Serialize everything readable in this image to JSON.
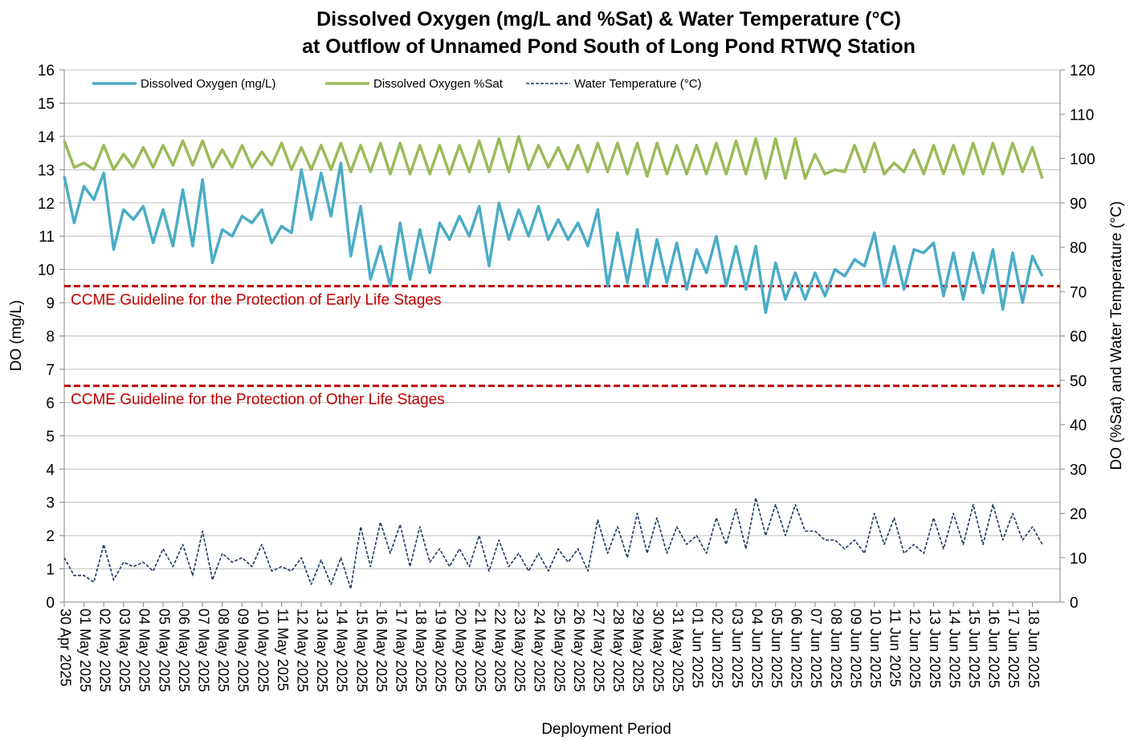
{
  "chart_data": {
    "type": "line",
    "title": "Dissolved Oxygen (mg/L and %Sat) & Water Temperature (°C)",
    "subtitle": "at Outflow of Unnamed Pond South of Long Pond RTWQ Station",
    "x_label": "Deployment Period",
    "y_label": "DO (mg/L)",
    "y2_label": "DO (%Sat) and Water Temperature (°C)",
    "legend": "upper left",
    "ylim": [
      0,
      16
    ],
    "yticks": [
      0,
      1,
      2,
      3,
      4,
      5,
      6,
      7,
      8,
      9,
      10,
      11,
      12,
      13,
      14,
      15,
      16
    ],
    "y2lim": [
      0,
      120
    ],
    "y2ticks": [
      0,
      10,
      20,
      30,
      40,
      50,
      60,
      70,
      80,
      90,
      100,
      110,
      120
    ],
    "grid": true,
    "reference_lines": [
      {
        "value": 9.5,
        "label": "CCME Guideline for the Protection of Early Life Stages",
        "color": "#c00000"
      },
      {
        "value": 6.5,
        "label": "CCME Guideline for the Protection of Other Life Stages",
        "color": "#c00000"
      }
    ],
    "categories": [
      "30 Apr 2025",
      null,
      "01 May 2025",
      null,
      "02 May 2025",
      null,
      "03 May 2025",
      null,
      "04 May 2025",
      null,
      "05 May 2025",
      null,
      "06 May 2025",
      null,
      "07 May 2025",
      null,
      "08 May 2025",
      null,
      "09 May 2025",
      null,
      "10 May 2025",
      null,
      "11 May 2025",
      null,
      "12 May 2025",
      null,
      "13 May 2025",
      null,
      "14 May 2025",
      null,
      "15 May 2025",
      null,
      "16 May 2025",
      null,
      "17 May 2025",
      null,
      "18 May 2025",
      null,
      "19 May 2025",
      null,
      "20 May 2025",
      null,
      "21 May 2025",
      null,
      "22 May 2025",
      null,
      "23 May 2025",
      null,
      "24 May 2025",
      null,
      "25 May 2025",
      null,
      "26 May 2025",
      null,
      "27 May 2025",
      null,
      "28 May 2025",
      null,
      "29 May 2025",
      null,
      "30 May 2025",
      null,
      "31 May 2025",
      null,
      "01 Jun 2025",
      null,
      "02 Jun 2025",
      null,
      "03 Jun 2025",
      null,
      "04 Jun 2025",
      null,
      "05 Jun 2025",
      null,
      "06 Jun 2025",
      null,
      "07 Jun 2025",
      null,
      "08 Jun 2025",
      null,
      "09 Jun 2025",
      null,
      "10 Jun 2025",
      null,
      "11 Jun 2025",
      null,
      "12 Jun 2025",
      null,
      "13 Jun 2025",
      null,
      "14 Jun 2025",
      null,
      "15 Jun 2025",
      null,
      "16 Jun 2025",
      null,
      "17 Jun 2025",
      null,
      "18 Jun 2025",
      null
    ],
    "series": [
      {
        "name": "Dissolved Oxygen (mg/L)",
        "color": "#4bacc6",
        "style": "solid",
        "axis": "y",
        "values": [
          12.8,
          11.4,
          12.5,
          12.1,
          12.9,
          10.6,
          11.8,
          11.5,
          11.9,
          10.8,
          11.8,
          10.7,
          12.4,
          10.7,
          12.7,
          10.2,
          11.2,
          11.0,
          11.6,
          11.4,
          11.8,
          10.8,
          11.3,
          11.1,
          13.0,
          11.5,
          12.9,
          11.6,
          13.2,
          10.4,
          11.9,
          9.7,
          10.7,
          9.5,
          11.4,
          9.7,
          11.2,
          9.9,
          11.4,
          10.9,
          11.6,
          11.0,
          11.9,
          10.1,
          12.0,
          10.9,
          11.8,
          11.0,
          11.9,
          10.9,
          11.5,
          10.9,
          11.4,
          10.7,
          11.8,
          9.5,
          11.1,
          9.6,
          11.2,
          9.5,
          10.9,
          9.6,
          10.8,
          9.4,
          10.6,
          9.9,
          11.0,
          9.5,
          10.7,
          9.4,
          10.7,
          8.7,
          10.2,
          9.1,
          9.9,
          9.1,
          9.9,
          9.2,
          10.0,
          9.8,
          10.3,
          10.1,
          11.1,
          9.5,
          10.7,
          9.4,
          10.6,
          10.5,
          10.8,
          9.2,
          10.5,
          9.1,
          10.5,
          9.3,
          10.6,
          8.8,
          10.5,
          9.0,
          10.4,
          9.8
        ]
      },
      {
        "name": "Dissolved Oxygen %Sat",
        "color": "#9bbb59",
        "style": "solid",
        "axis": "y2",
        "values": [
          104,
          98,
          99,
          97.5,
          103,
          97.5,
          101,
          98,
          102.5,
          98,
          103,
          98.5,
          104,
          98.5,
          104,
          98,
          102,
          98,
          103,
          98,
          101.5,
          98.5,
          103.5,
          97.5,
          102.5,
          97.5,
          103,
          97.5,
          103.5,
          97,
          103,
          97,
          103.5,
          96.5,
          103.5,
          96.5,
          103,
          96.5,
          103,
          96.5,
          103,
          97,
          104,
          97,
          104.5,
          97,
          105,
          97.5,
          103,
          98,
          102.5,
          97.5,
          103,
          97,
          103.5,
          97,
          103.5,
          96.5,
          103.5,
          96,
          103.5,
          96.5,
          103,
          96.5,
          103,
          96.5,
          103.5,
          96.5,
          104,
          96.5,
          104.5,
          95.5,
          104.5,
          95.5,
          104.5,
          95.5,
          101,
          96.5,
          97.5,
          97,
          103,
          97,
          103.5,
          96.5,
          99,
          97,
          102,
          96.5,
          103,
          96.5,
          103,
          96.5,
          103.5,
          96.5,
          103.5,
          96.5,
          103.5,
          97,
          102.5,
          95.5
        ]
      },
      {
        "name": "Water Temperature (°C)",
        "color": "#1f3864",
        "style": "dashed",
        "axis": "y2",
        "values": [
          10,
          6,
          6,
          4.5,
          13,
          5,
          9,
          8,
          9,
          7,
          12,
          8,
          13,
          6,
          16,
          5,
          11,
          9,
          10,
          8,
          13,
          7,
          8,
          7,
          10,
          4,
          9.5,
          4,
          10,
          3,
          17,
          8,
          18,
          11,
          17.5,
          8,
          17,
          9,
          12,
          8,
          12,
          8,
          15,
          7,
          14,
          8,
          11,
          7,
          11,
          7,
          12,
          9,
          12,
          7,
          18.5,
          11,
          17,
          10,
          20,
          11,
          19,
          11,
          17,
          13,
          15,
          11,
          19,
          13,
          21,
          12,
          23.5,
          15,
          22,
          15,
          22,
          16,
          16,
          14,
          14,
          12,
          14,
          11,
          20,
          13,
          19,
          11,
          13,
          11,
          19,
          12,
          20,
          13,
          22,
          13,
          22,
          14,
          20,
          14,
          17,
          13
        ]
      }
    ]
  }
}
